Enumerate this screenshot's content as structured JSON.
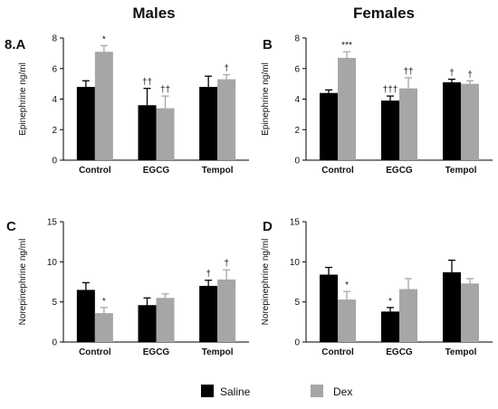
{
  "headings": {
    "males": "Males",
    "females": "Females"
  },
  "legend": {
    "saline": "Saline",
    "dex": "Dex"
  },
  "colors": {
    "saline": "#000000",
    "dex": "#a6a6a6"
  },
  "chart_data": [
    {
      "panel": "8.A",
      "type": "bar",
      "ylabel": "Epinephrine ng/ml",
      "ylim": [
        0,
        8
      ],
      "yticks": [
        0,
        2,
        4,
        6,
        8
      ],
      "categories": [
        "Control",
        "EGCG",
        "Tempol"
      ],
      "series": [
        {
          "name": "Saline",
          "values": [
            4.8,
            3.6,
            4.8
          ],
          "errors": [
            0.4,
            1.1,
            0.7
          ]
        },
        {
          "name": "Dex",
          "values": [
            7.1,
            3.4,
            5.3
          ],
          "errors": [
            0.4,
            0.8,
            0.3
          ]
        }
      ],
      "annotations": [
        [
          "",
          "*"
        ],
        [
          "††",
          "††"
        ],
        [
          "",
          "†"
        ]
      ]
    },
    {
      "panel": "B",
      "type": "bar",
      "ylabel": "Epinephrine ng/ml",
      "ylim": [
        0,
        8
      ],
      "yticks": [
        0,
        2,
        4,
        6,
        8
      ],
      "categories": [
        "Control",
        "EGCG",
        "Tempol"
      ],
      "series": [
        {
          "name": "Saline",
          "values": [
            4.4,
            3.9,
            5.1
          ],
          "errors": [
            0.2,
            0.3,
            0.2
          ]
        },
        {
          "name": "Dex",
          "values": [
            6.7,
            4.7,
            5.0
          ],
          "errors": [
            0.4,
            0.7,
            0.2
          ]
        }
      ],
      "annotations": [
        [
          "",
          "***"
        ],
        [
          "†††",
          "††"
        ],
        [
          "†",
          "†"
        ]
      ]
    },
    {
      "panel": "C",
      "type": "bar",
      "ylabel": "Norepinephrine ng/ml",
      "ylim": [
        0,
        15
      ],
      "yticks": [
        0,
        5,
        10,
        15
      ],
      "categories": [
        "Control",
        "EGCG",
        "Tempol"
      ],
      "series": [
        {
          "name": "Saline",
          "values": [
            6.5,
            4.6,
            7.0
          ],
          "errors": [
            0.9,
            0.9,
            0.7
          ]
        },
        {
          "name": "Dex",
          "values": [
            3.6,
            5.5,
            7.8
          ],
          "errors": [
            0.7,
            0.5,
            1.2
          ]
        }
      ],
      "annotations": [
        [
          "",
          "*"
        ],
        [
          "",
          ""
        ],
        [
          "†",
          "†"
        ]
      ]
    },
    {
      "panel": "D",
      "type": "bar",
      "ylabel": "Norepinephrine ng/ml",
      "ylim": [
        0,
        15
      ],
      "yticks": [
        0,
        5,
        10,
        15
      ],
      "categories": [
        "Control",
        "EGCG",
        "Tempol"
      ],
      "series": [
        {
          "name": "Saline",
          "values": [
            8.4,
            3.8,
            8.7
          ],
          "errors": [
            0.9,
            0.5,
            1.5
          ]
        },
        {
          "name": "Dex",
          "values": [
            5.3,
            6.6,
            7.3
          ],
          "errors": [
            1.0,
            1.3,
            0.6
          ]
        }
      ],
      "annotations": [
        [
          "",
          "*"
        ],
        [
          "*",
          ""
        ],
        [
          "",
          ""
        ]
      ]
    }
  ]
}
